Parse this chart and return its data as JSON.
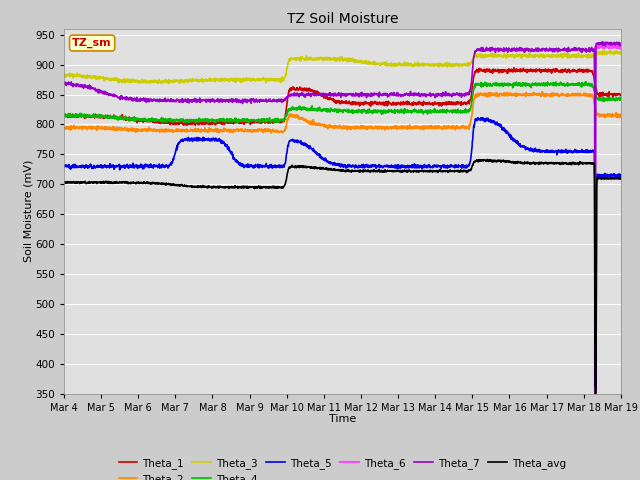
{
  "title": "TZ Soil Moisture",
  "xlabel": "Time",
  "ylabel": "Soil Moisture (mV)",
  "ylim": [
    350,
    960
  ],
  "yticks": [
    350,
    400,
    450,
    500,
    550,
    600,
    650,
    700,
    750,
    800,
    850,
    900,
    950
  ],
  "bg_color": "#cccccc",
  "plot_bg_color": "#e0e0e0",
  "legend_label": "TZ_sm",
  "series": {
    "Theta_1": {
      "color": "#cc0000"
    },
    "Theta_2": {
      "color": "#ff8800"
    },
    "Theta_3": {
      "color": "#cccc00"
    },
    "Theta_4": {
      "color": "#00bb00"
    },
    "Theta_5": {
      "color": "#0000ee"
    },
    "Theta_6": {
      "color": "#ff44ff"
    },
    "Theta_7": {
      "color": "#9900cc"
    },
    "Theta_avg": {
      "color": "#000000"
    }
  }
}
